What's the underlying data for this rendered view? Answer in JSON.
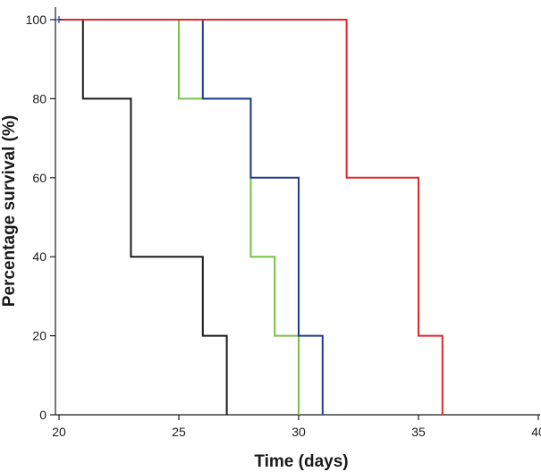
{
  "chart_data": {
    "type": "line",
    "subtype": "kaplan-meier step",
    "title": "",
    "xlabel": "Time (days)",
    "ylabel": "Percentage survival (%)",
    "xlim": [
      20,
      40
    ],
    "ylim": [
      0,
      100
    ],
    "xticks": [
      20,
      25,
      30,
      35,
      40
    ],
    "yticks": [
      0,
      20,
      40,
      60,
      80,
      100
    ],
    "grid": false,
    "legend": "none",
    "series": [
      {
        "color": "#1a1a1a",
        "x": [
          20,
          21,
          21,
          23,
          23,
          26,
          26,
          27,
          27
        ],
        "y": [
          100,
          100,
          80,
          80,
          40,
          40,
          20,
          20,
          0
        ]
      },
      {
        "color": "#7ac143",
        "x": [
          20,
          25,
          25,
          26,
          26,
          28,
          28,
          29,
          29,
          30,
          30
        ],
        "y": [
          100,
          100,
          80,
          80,
          80,
          80,
          40,
          40,
          20,
          20,
          0
        ]
      },
      {
        "color": "#1f3a8f",
        "x": [
          20,
          26,
          26,
          28,
          28,
          30,
          30,
          31,
          31
        ],
        "y": [
          100,
          100,
          80,
          80,
          60,
          60,
          20,
          20,
          0
        ]
      },
      {
        "color": "#e3262a",
        "x": [
          20,
          32,
          32,
          35,
          35,
          36,
          36
        ],
        "y": [
          100,
          100,
          60,
          60,
          20,
          20,
          0
        ]
      }
    ],
    "censor_marks": [
      {
        "x": 20,
        "y": 100,
        "symbol": "+",
        "color": "#1f3a8f"
      }
    ]
  }
}
